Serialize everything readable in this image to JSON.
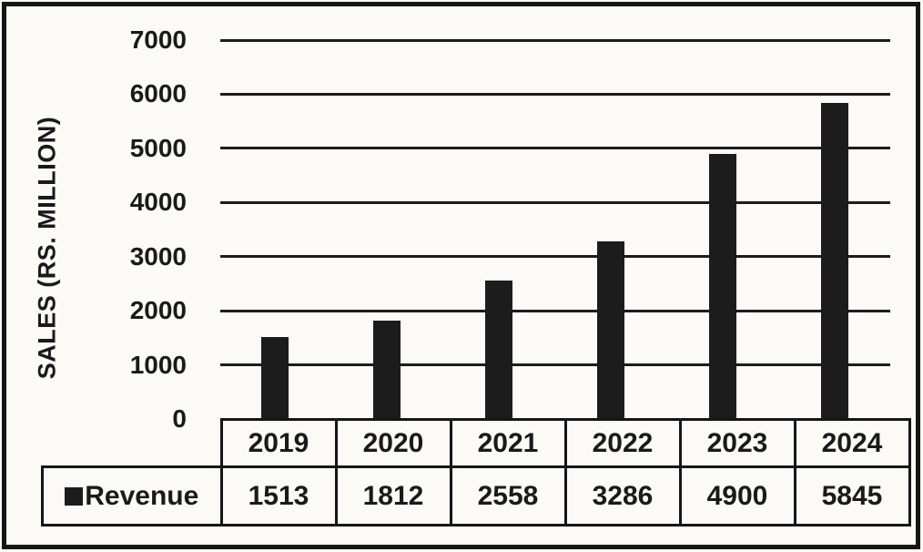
{
  "chart_data": {
    "type": "bar",
    "title": "",
    "xlabel": "",
    "ylabel": "SALES (RS. MILLION)",
    "categories": [
      "2019",
      "2020",
      "2021",
      "2022",
      "2023",
      "2024"
    ],
    "series": [
      {
        "name": "Revenue",
        "values": [
          1513,
          1812,
          2558,
          3286,
          4900,
          5845
        ]
      }
    ],
    "y_ticks": [
      "0",
      "1000",
      "2000",
      "3000",
      "4000",
      "5000",
      "6000",
      "7000"
    ],
    "ylim": [
      0,
      7000
    ],
    "grid": true,
    "legend_position": "table-row-header",
    "bar_color": "#1c1c1c",
    "ink_color": "#1a1a1a",
    "background_color": "#fbfaf7"
  }
}
